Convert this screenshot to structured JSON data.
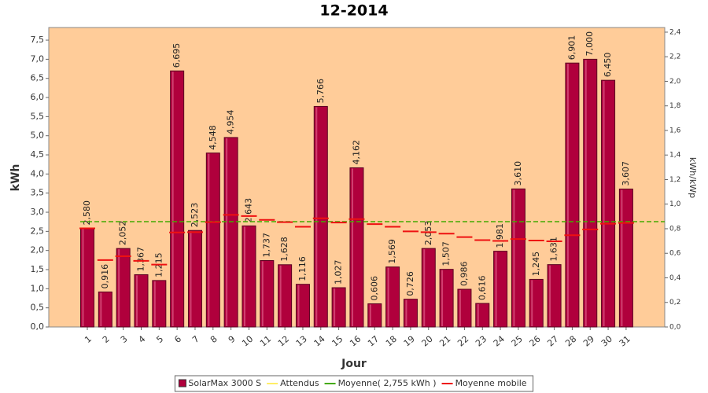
{
  "chart_data": {
    "type": "bar",
    "title": "12-2014",
    "xlabel": "Jour",
    "ylabel": "kWh",
    "y2label": "kWh/kWp",
    "categories": [
      "1",
      "2",
      "3",
      "4",
      "5",
      "6",
      "7",
      "8",
      "9",
      "10",
      "11",
      "12",
      "13",
      "14",
      "15",
      "16",
      "17",
      "18",
      "19",
      "20",
      "21",
      "22",
      "23",
      "24",
      "25",
      "26",
      "27",
      "28",
      "29",
      "30",
      "31"
    ],
    "series": [
      {
        "name": "SolarMax 3000 S",
        "color": "#b0003c",
        "values": [
          2.58,
          0.916,
          2.052,
          1.367,
          1.215,
          6.695,
          2.523,
          4.548,
          4.954,
          2.643,
          1.737,
          1.628,
          1.116,
          5.766,
          1.027,
          4.162,
          0.606,
          1.569,
          0.726,
          2.053,
          1.507,
          0.986,
          0.616,
          1.981,
          3.61,
          1.245,
          1.631,
          6.901,
          7.0,
          6.45,
          3.607
        ],
        "value_labels": [
          "2,580",
          "0,916",
          "2,052",
          "1,367",
          "1,215",
          "6,695",
          "2,523",
          "4,548",
          "4,954",
          "2,643",
          "1,737",
          "1,628",
          "1,116",
          "5,766",
          "1,027",
          "4,162",
          "0,606",
          "1,569",
          "0,726",
          "2,053",
          "1,507",
          "0,986",
          "0,616",
          "1,981",
          "3,610",
          "1,245",
          "1,631",
          "6,901",
          "7,000",
          "6,450",
          "3,607"
        ]
      },
      {
        "name": "Moyenne mobile",
        "color": "#ee1111",
        "values": [
          2.58,
          1.75,
          1.85,
          1.73,
          1.63,
          2.47,
          2.48,
          2.74,
          2.93,
          2.9,
          2.8,
          2.74,
          2.62,
          2.84,
          2.73,
          2.82,
          2.69,
          2.62,
          2.5,
          2.48,
          2.44,
          2.35,
          2.27,
          2.25,
          2.3,
          2.26,
          2.24,
          2.4,
          2.55,
          2.7,
          2.72
        ]
      }
    ],
    "expected": {
      "name": "Attendus",
      "color": "#ffee66"
    },
    "average": {
      "name": "Moyenne( 2,755 kWh )",
      "value": 2.755,
      "color": "#44aa00"
    },
    "ylim": [
      0,
      7.83
    ],
    "yticks": [
      {
        "value": 0,
        "label": "0,0"
      },
      {
        "value": 0.5,
        "label": "0,5"
      },
      {
        "value": 1,
        "label": "1,0"
      },
      {
        "value": 1.5,
        "label": "1,5"
      },
      {
        "value": 2,
        "label": "2,0"
      },
      {
        "value": 2.5,
        "label": "2,5"
      },
      {
        "value": 3,
        "label": "3,0"
      },
      {
        "value": 3.5,
        "label": "3,5"
      },
      {
        "value": 4,
        "label": "4,0"
      },
      {
        "value": 4.5,
        "label": "4,5"
      },
      {
        "value": 5,
        "label": "5,0"
      },
      {
        "value": 5.5,
        "label": "5,5"
      },
      {
        "value": 6,
        "label": "6,0"
      },
      {
        "value": 6.5,
        "label": "6,5"
      },
      {
        "value": 7,
        "label": "7,0"
      },
      {
        "value": 7.5,
        "label": "7,5"
      }
    ],
    "y2lim": [
      0,
      2.438
    ],
    "y2ticks": [
      {
        "value": 0,
        "label": "0,0"
      },
      {
        "value": 0.2,
        "label": "0,2"
      },
      {
        "value": 0.4,
        "label": "0,4"
      },
      {
        "value": 0.6,
        "label": "0,6"
      },
      {
        "value": 0.8,
        "label": "0,8"
      },
      {
        "value": 1,
        "label": "1,0"
      },
      {
        "value": 1.2,
        "label": "1,2"
      },
      {
        "value": 1.4,
        "label": "1,4"
      },
      {
        "value": 1.6,
        "label": "1,6"
      },
      {
        "value": 1.8,
        "label": "1,8"
      },
      {
        "value": 2,
        "label": "2,0"
      },
      {
        "value": 2.2,
        "label": "2,2"
      },
      {
        "value": 2.4,
        "label": "2,4"
      }
    ],
    "background": "#ffcc99"
  }
}
